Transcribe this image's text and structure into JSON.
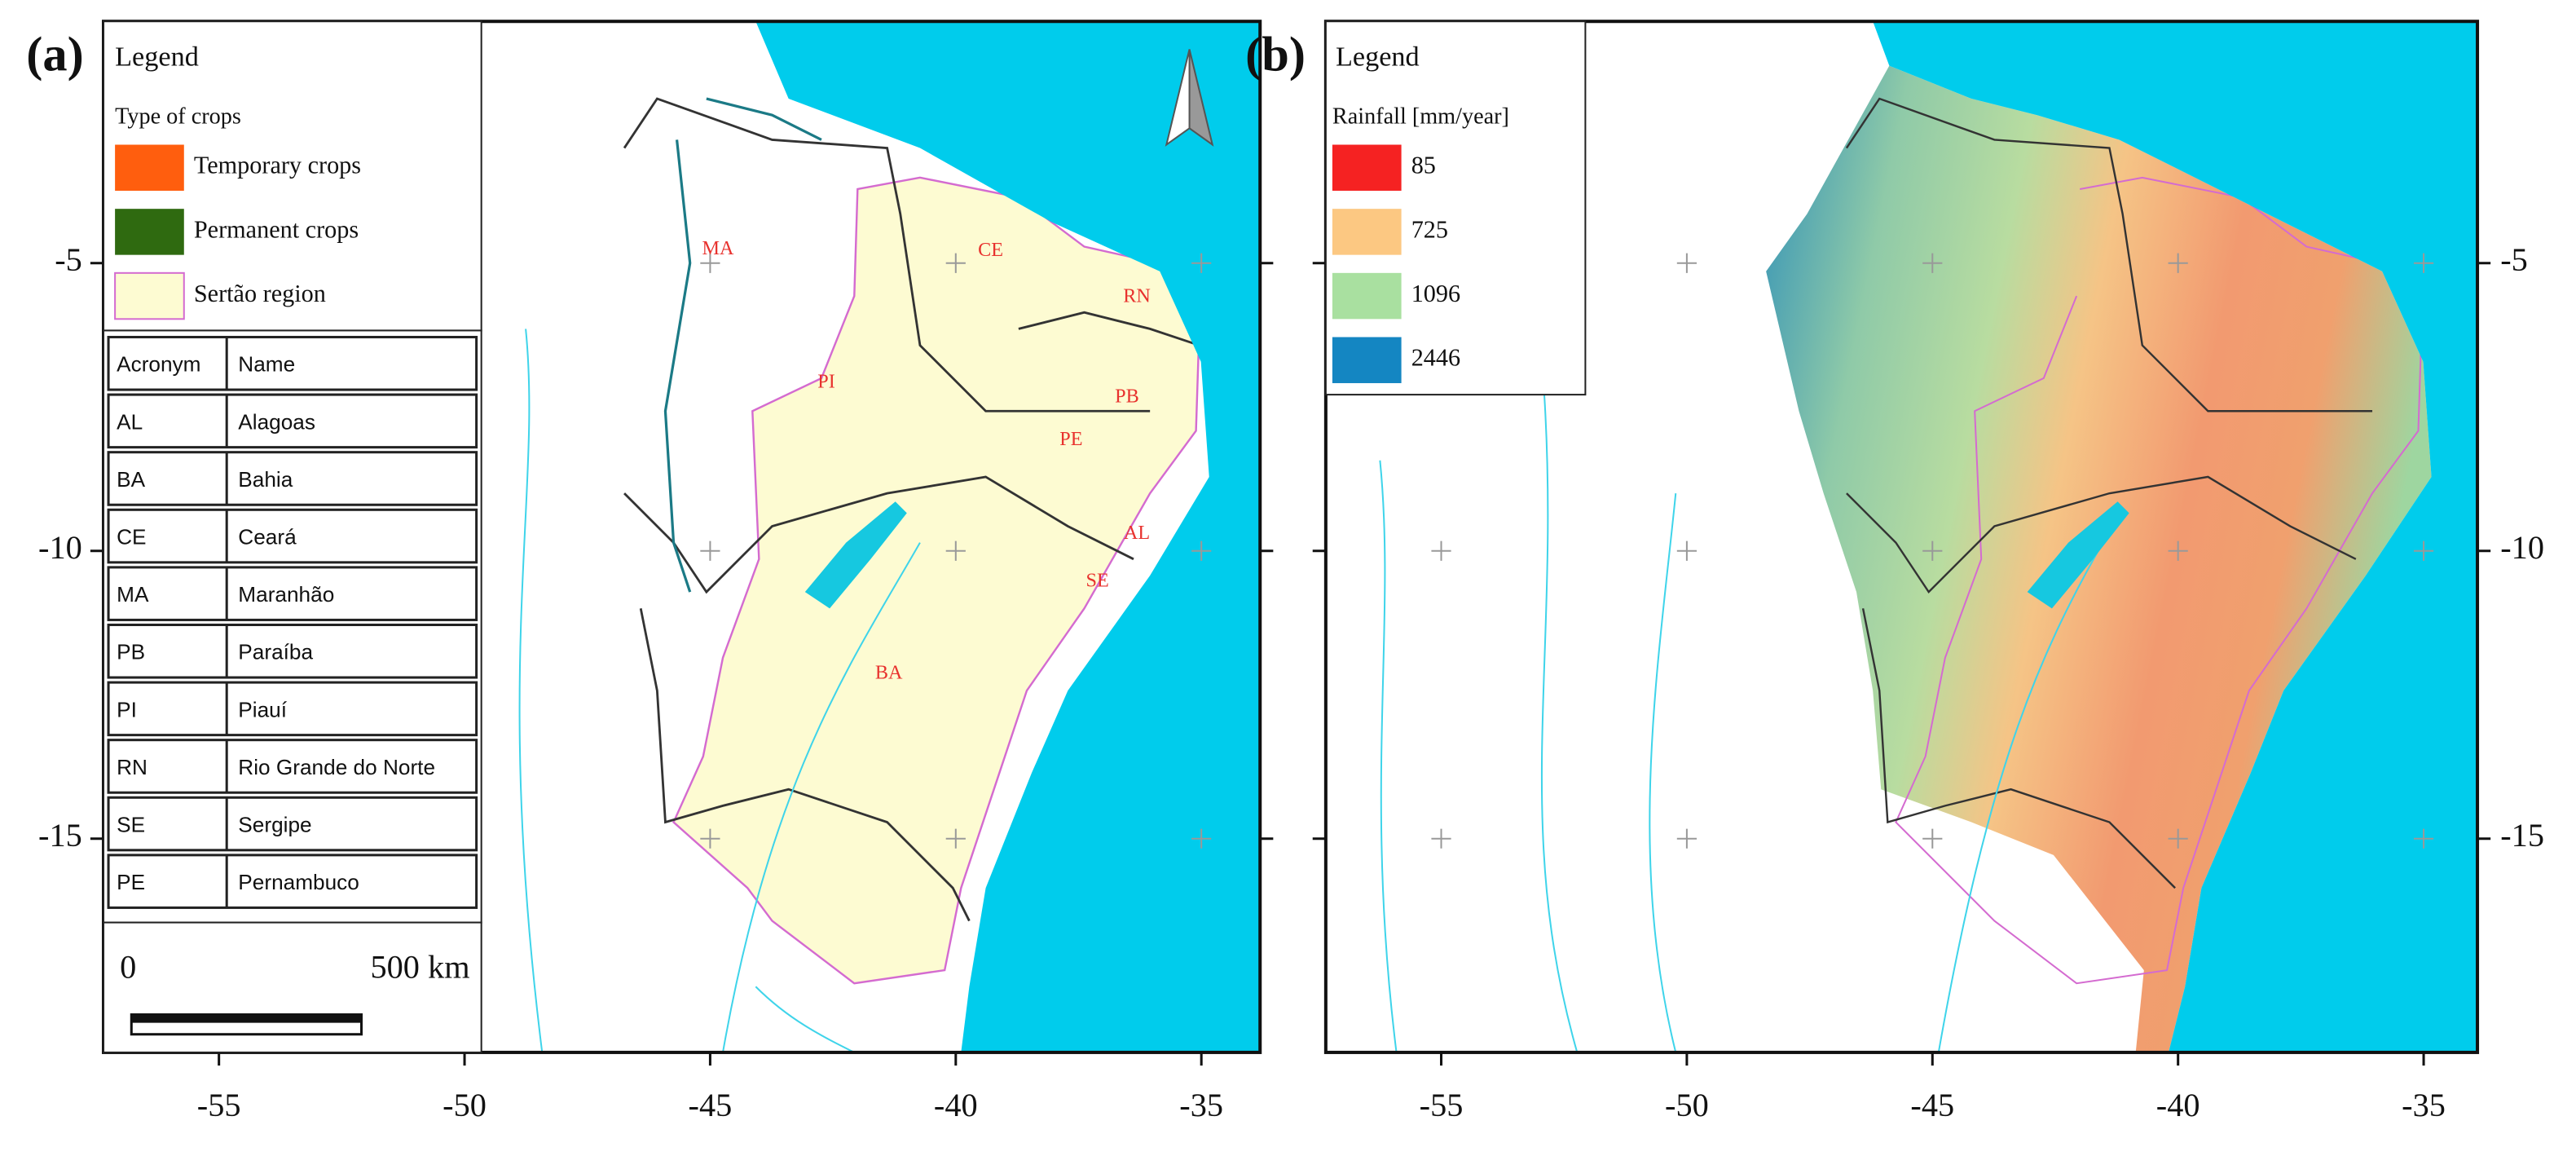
{
  "panels": [
    {
      "label": "(a)",
      "legend": {
        "title": "Legend",
        "heading": "Type of crops",
        "items": [
          "Temporary crops",
          "Permanent crops",
          "Sertão region"
        ]
      },
      "table": {
        "header": [
          "Acronym",
          "Name"
        ],
        "rows": [
          [
            "AL",
            "Alagoas"
          ],
          [
            "BA",
            "Bahia"
          ],
          [
            "CE",
            "Ceará"
          ],
          [
            "MA",
            "Maranhão"
          ],
          [
            "PB",
            "Paraíba"
          ],
          [
            "PI",
            "Piauí"
          ],
          [
            "RN",
            "Rio Grande do Norte"
          ],
          [
            "SE",
            "Sergipe"
          ],
          [
            "PE",
            "Pernambuco"
          ]
        ]
      },
      "scale_bar": {
        "start": "0",
        "end": "500 km"
      },
      "state_labels": [
        "MA",
        "CE",
        "RN",
        "PI",
        "PB",
        "PE",
        "AL",
        "SE",
        "BA"
      ]
    },
    {
      "label": "(b)",
      "legend": {
        "title": "Legend",
        "heading": "Rainfall [mm/year]",
        "values": [
          85,
          725,
          1096,
          2446
        ]
      }
    }
  ],
  "longitude_ticks": [
    -55,
    -50,
    -45,
    -40,
    -35
  ],
  "latitude_ticks": [
    -5,
    -10,
    -15
  ]
}
